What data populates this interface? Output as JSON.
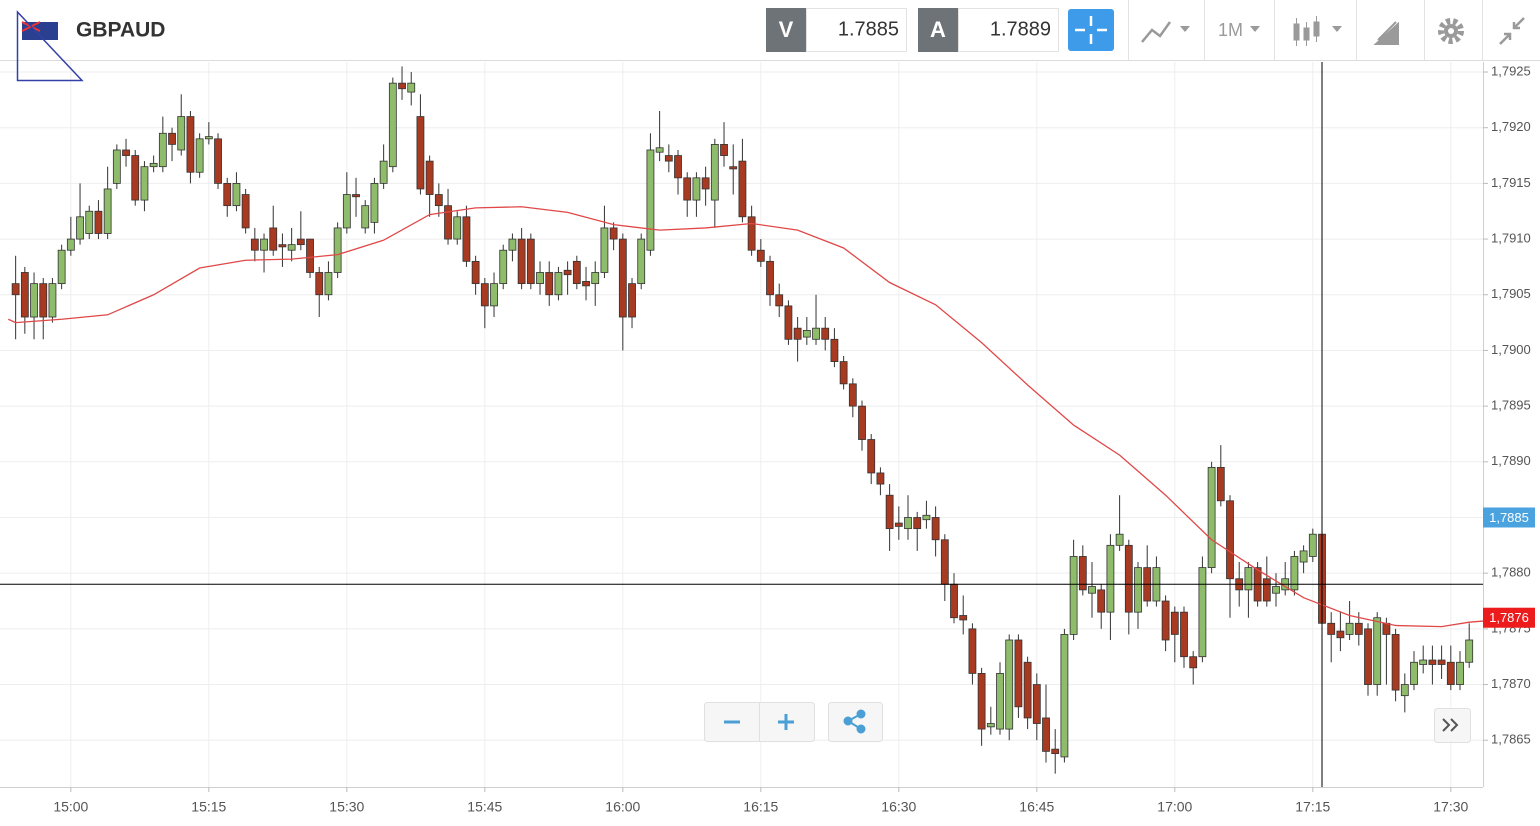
{
  "header": {
    "symbol": "GBPAUD",
    "bid_label": "V",
    "bid": 1.7885,
    "ask_label": "A",
    "ask": 1.7889,
    "timeframe": "1M"
  },
  "chart_data": {
    "type": "candlestick",
    "up_color": "#8fbc6a",
    "down_color": "#a83a22",
    "grid": true,
    "xlim": [
      892.3,
      1053.5
    ],
    "ylim": [
      1.78608,
      1.79259
    ],
    "xticks": [
      {
        "value": 900,
        "label": "15:00"
      },
      {
        "value": 915,
        "label": "15:15"
      },
      {
        "value": 930,
        "label": "15:30"
      },
      {
        "value": 945,
        "label": "15:45"
      },
      {
        "value": 960,
        "label": "16:00"
      },
      {
        "value": 975,
        "label": "16:15"
      },
      {
        "value": 990,
        "label": "16:30"
      },
      {
        "value": 1005,
        "label": "16:45"
      },
      {
        "value": 1020,
        "label": "17:00"
      },
      {
        "value": 1035,
        "label": "17:15"
      },
      {
        "value": 1050,
        "label": "17:30"
      }
    ],
    "yticks": [
      {
        "value": 1.7865,
        "label": "1,7865"
      },
      {
        "value": 1.787,
        "label": "1,7870"
      },
      {
        "value": 1.7875,
        "label": "1,7875"
      },
      {
        "value": 1.788,
        "label": "1,7880"
      },
      {
        "value": 1.7885,
        "label": "1,7885"
      },
      {
        "value": 1.789,
        "label": "1,7890"
      },
      {
        "value": 1.7895,
        "label": "1,7895"
      },
      {
        "value": 1.79,
        "label": "1,7900"
      },
      {
        "value": 1.7905,
        "label": "1,7905"
      },
      {
        "value": 1.791,
        "label": "1,7910"
      },
      {
        "value": 1.7915,
        "label": "1,7915"
      },
      {
        "value": 1.792,
        "label": "1,7920"
      },
      {
        "value": 1.7925,
        "label": "1,7925"
      }
    ],
    "price_tags": [
      {
        "value": 1.7885,
        "label": "1,7885",
        "color": "#4aa3df"
      },
      {
        "value": 1.7876,
        "label": "1,7876",
        "color": "#ec1c1c"
      }
    ],
    "crosshair": {
      "x": 1036,
      "y": 1.7879
    },
    "x": [
      894,
      895,
      896,
      897,
      898,
      899,
      900,
      901,
      902,
      903,
      904,
      905,
      906,
      907,
      908,
      909,
      910,
      911,
      912,
      913,
      914,
      915,
      916,
      917,
      918,
      919,
      920,
      921,
      922,
      923,
      924,
      925,
      926,
      927,
      928,
      929,
      930,
      931,
      932,
      933,
      934,
      935,
      936,
      937,
      938,
      939,
      940,
      941,
      942,
      943,
      944,
      945,
      946,
      947,
      948,
      949,
      950,
      951,
      952,
      953,
      954,
      955,
      956,
      957,
      958,
      959,
      960,
      961,
      962,
      963,
      964,
      965,
      966,
      967,
      968,
      969,
      970,
      971,
      972,
      973,
      974,
      975,
      976,
      977,
      978,
      979,
      980,
      981,
      982,
      983,
      984,
      985,
      986,
      987,
      988,
      989,
      990,
      991,
      992,
      993,
      994,
      995,
      996,
      997,
      998,
      999,
      1000,
      1001,
      1002,
      1003,
      1004,
      1005,
      1006,
      1007,
      1008,
      1009,
      1010,
      1011,
      1012,
      1013,
      1014,
      1015,
      1016,
      1017,
      1018,
      1019,
      1020,
      1021,
      1022,
      1023,
      1024,
      1025,
      1026,
      1027,
      1028,
      1029,
      1030,
      1031,
      1032,
      1033,
      1034,
      1035,
      1036,
      1037,
      1038,
      1039,
      1040,
      1041,
      1042,
      1043,
      1044,
      1045,
      1046,
      1047,
      1048,
      1049,
      1050,
      1051,
      1052
    ],
    "open": [
      1.7906,
      1.7907,
      1.7903,
      1.7906,
      1.7903,
      1.7906,
      1.7909,
      1.791,
      1.79105,
      1.79125,
      1.79105,
      1.7915,
      1.7918,
      1.79175,
      1.79135,
      1.79165,
      1.79165,
      1.79195,
      1.7918,
      1.7921,
      1.7916,
      1.7919,
      1.7919,
      1.7915,
      1.7913,
      1.7914,
      1.791,
      1.7909,
      1.7911,
      1.79095,
      1.7909,
      1.791,
      1.791,
      1.7907,
      1.7905,
      1.7907,
      1.7911,
      1.7914,
      1.7911,
      1.79115,
      1.7915,
      1.79165,
      1.7924,
      1.79232,
      1.7921,
      1.7917,
      1.7914,
      1.7913,
      1.791,
      1.7912,
      1.7908,
      1.7906,
      1.7904,
      1.7906,
      1.7909,
      1.791,
      1.791,
      1.7906,
      1.7907,
      1.7905,
      1.79072,
      1.7908,
      1.79062,
      1.7906,
      1.7907,
      1.7911,
      1.791,
      1.7906,
      1.7906,
      1.7909,
      1.79178,
      1.79175,
      1.79175,
      1.79155,
      1.79135,
      1.79155,
      1.79135,
      1.79185,
      1.79165,
      1.7917,
      1.7912,
      1.7909,
      1.7908,
      1.7905,
      1.7904,
      1.7902,
      1.79012,
      1.7901,
      1.7902,
      1.7901,
      1.7899,
      1.7897,
      1.7895,
      1.7892,
      1.7889,
      1.7887,
      1.78845,
      1.7884,
      1.7885,
      1.78848,
      1.7885,
      1.7883,
      1.7879,
      1.78762,
      1.7875,
      1.7871,
      1.78662,
      1.7866,
      1.7866,
      1.7874,
      1.7872,
      1.787,
      1.7867,
      1.78642,
      1.78635,
      1.78745,
      1.78815,
      1.78782,
      1.78785,
      1.78765,
      1.78825,
      1.78825,
      1.78765,
      1.78805,
      1.78775,
      1.78775,
      1.78765,
      1.78765,
      1.78725,
      1.78725,
      1.78805,
      1.78895,
      1.78865,
      1.78795,
      1.78785,
      1.78805,
      1.78795,
      1.78782,
      1.78785,
      1.78785,
      1.7881,
      1.78815,
      1.78835,
      1.78755,
      1.78748,
      1.78745,
      1.78755,
      1.7875,
      1.787,
      1.78755,
      1.78745,
      1.7869,
      1.787,
      1.78718,
      1.78722,
      1.78722,
      1.7872,
      1.787,
      1.7872
    ],
    "close": [
      1.7905,
      1.7903,
      1.7906,
      1.7903,
      1.7906,
      1.7909,
      1.791,
      1.7912,
      1.79125,
      1.79105,
      1.79145,
      1.7918,
      1.79175,
      1.79135,
      1.79165,
      1.79168,
      1.79195,
      1.79185,
      1.7921,
      1.7916,
      1.7919,
      1.79192,
      1.7915,
      1.7913,
      1.7915,
      1.7911,
      1.7909,
      1.791,
      1.7909,
      1.79093,
      1.79095,
      1.79095,
      1.7907,
      1.7905,
      1.7907,
      1.7911,
      1.7914,
      1.79138,
      1.7913,
      1.7915,
      1.7917,
      1.7924,
      1.79235,
      1.7924,
      1.79145,
      1.7914,
      1.7913,
      1.791,
      1.7912,
      1.7908,
      1.7906,
      1.7904,
      1.7906,
      1.7909,
      1.791,
      1.7906,
      1.7906,
      1.7907,
      1.7905,
      1.7907,
      1.79068,
      1.7906,
      1.79058,
      1.7907,
      1.7911,
      1.791,
      1.7903,
      1.7903,
      1.791,
      1.7918,
      1.79182,
      1.7917,
      1.79155,
      1.79135,
      1.79155,
      1.79145,
      1.79185,
      1.79175,
      1.79163,
      1.7912,
      1.7909,
      1.7908,
      1.7905,
      1.7904,
      1.7901,
      1.7901,
      1.79018,
      1.7902,
      1.7901,
      1.7899,
      1.7897,
      1.7895,
      1.7892,
      1.7889,
      1.7888,
      1.7884,
      1.78842,
      1.7885,
      1.7884,
      1.78852,
      1.7883,
      1.7879,
      1.7876,
      1.78758,
      1.7871,
      1.7866,
      1.78665,
      1.7871,
      1.7874,
      1.7868,
      1.7867,
      1.78665,
      1.7864,
      1.78638,
      1.78745,
      1.78815,
      1.78785,
      1.78788,
      1.78765,
      1.78825,
      1.78835,
      1.78765,
      1.78805,
      1.78775,
      1.78805,
      1.7874,
      1.78745,
      1.78725,
      1.78715,
      1.78805,
      1.78895,
      1.78865,
      1.78795,
      1.78785,
      1.78805,
      1.78775,
      1.78775,
      1.78788,
      1.78795,
      1.78815,
      1.7882,
      1.78835,
      1.78755,
      1.78745,
      1.78742,
      1.78755,
      1.78745,
      1.787,
      1.7876,
      1.78745,
      1.78695,
      1.787,
      1.7872,
      1.78722,
      1.78718,
      1.78718,
      1.787,
      1.7872,
      1.7874
    ],
    "high": [
      1.79085,
      1.79075,
      1.7907,
      1.79065,
      1.79065,
      1.79095,
      1.7912,
      1.7915,
      1.7913,
      1.79135,
      1.79165,
      1.79185,
      1.7919,
      1.7918,
      1.7917,
      1.79175,
      1.7921,
      1.792,
      1.7923,
      1.79215,
      1.79195,
      1.79205,
      1.79195,
      1.79155,
      1.7916,
      1.79145,
      1.7911,
      1.79105,
      1.7913,
      1.79105,
      1.7911,
      1.79125,
      1.791,
      1.79075,
      1.7908,
      1.79115,
      1.7916,
      1.79155,
      1.79135,
      1.79155,
      1.79185,
      1.79245,
      1.79255,
      1.7925,
      1.7923,
      1.79175,
      1.7915,
      1.79145,
      1.79125,
      1.7913,
      1.79085,
      1.79065,
      1.7907,
      1.79095,
      1.79105,
      1.7911,
      1.79105,
      1.7908,
      1.7908,
      1.79075,
      1.7908,
      1.79085,
      1.79075,
      1.7908,
      1.7913,
      1.79115,
      1.79105,
      1.79065,
      1.79105,
      1.79195,
      1.79215,
      1.79185,
      1.7918,
      1.7916,
      1.7916,
      1.79165,
      1.7919,
      1.79205,
      1.79185,
      1.7919,
      1.7913,
      1.791,
      1.79085,
      1.7906,
      1.79045,
      1.7903,
      1.7903,
      1.7905,
      1.7903,
      1.7902,
      1.78995,
      1.78975,
      1.78955,
      1.78925,
      1.78895,
      1.7888,
      1.7886,
      1.7887,
      1.78855,
      1.78865,
      1.7886,
      1.78835,
      1.788,
      1.7878,
      1.78755,
      1.78715,
      1.7868,
      1.7872,
      1.78745,
      1.78745,
      1.78725,
      1.7871,
      1.787,
      1.7866,
      1.7875,
      1.7883,
      1.78825,
      1.7881,
      1.7879,
      1.78835,
      1.7887,
      1.7883,
      1.7881,
      1.78825,
      1.78815,
      1.7878,
      1.7877,
      1.7877,
      1.7873,
      1.78815,
      1.789,
      1.78915,
      1.7887,
      1.7881,
      1.7881,
      1.7881,
      1.78815,
      1.788,
      1.7881,
      1.7882,
      1.78825,
      1.7884,
      1.78845,
      1.78765,
      1.78765,
      1.78775,
      1.78765,
      1.78755,
      1.78765,
      1.7876,
      1.7875,
      1.7871,
      1.7873,
      1.78735,
      1.78735,
      1.78735,
      1.78735,
      1.7873,
      1.78755
    ],
    "low": [
      1.7901,
      1.79015,
      1.7901,
      1.7901,
      1.79025,
      1.79055,
      1.79085,
      1.79095,
      1.791,
      1.791,
      1.791,
      1.79145,
      1.79165,
      1.7913,
      1.79125,
      1.7916,
      1.7916,
      1.7917,
      1.79175,
      1.7915,
      1.79155,
      1.79185,
      1.79145,
      1.7912,
      1.79125,
      1.79105,
      1.7908,
      1.7907,
      1.79085,
      1.79075,
      1.7908,
      1.7909,
      1.79065,
      1.7903,
      1.79045,
      1.79065,
      1.79105,
      1.7912,
      1.79105,
      1.79105,
      1.79145,
      1.7916,
      1.79225,
      1.7922,
      1.7914,
      1.7912,
      1.7912,
      1.79095,
      1.79095,
      1.79075,
      1.7905,
      1.7902,
      1.7903,
      1.79055,
      1.7908,
      1.79055,
      1.79055,
      1.7905,
      1.7904,
      1.79045,
      1.7905,
      1.79055,
      1.79045,
      1.7904,
      1.79065,
      1.7909,
      1.79,
      1.7902,
      1.79055,
      1.79085,
      1.7917,
      1.7916,
      1.7914,
      1.7912,
      1.7912,
      1.7913,
      1.7911,
      1.79165,
      1.7914,
      1.79115,
      1.79085,
      1.79075,
      1.7904,
      1.7903,
      1.79005,
      1.7899,
      1.79005,
      1.79005,
      1.79,
      1.78985,
      1.78965,
      1.7894,
      1.7891,
      1.7888,
      1.7887,
      1.7882,
      1.7883,
      1.7883,
      1.7882,
      1.7884,
      1.78815,
      1.78775,
      1.78755,
      1.78745,
      1.787,
      1.78645,
      1.78655,
      1.78655,
      1.7865,
      1.7867,
      1.7866,
      1.7865,
      1.7863,
      1.7862,
      1.7863,
      1.7874,
      1.7878,
      1.7876,
      1.7875,
      1.7874,
      1.7882,
      1.78745,
      1.7875,
      1.7877,
      1.7877,
      1.7873,
      1.7872,
      1.78715,
      1.787,
      1.7872,
      1.788,
      1.7886,
      1.7876,
      1.7877,
      1.7876,
      1.7877,
      1.7877,
      1.7877,
      1.7878,
      1.7878,
      1.788,
      1.7881,
      1.7874,
      1.7872,
      1.7873,
      1.7874,
      1.78735,
      1.7869,
      1.7869,
      1.787,
      1.78685,
      1.78675,
      1.78695,
      1.7871,
      1.787,
      1.78705,
      1.78695,
      1.78695,
      1.78715
    ],
    "ma": {
      "color": "#e04848",
      "x": [
        893.2,
        894,
        899,
        904,
        909,
        914,
        919,
        924,
        929,
        934,
        939,
        944,
        949,
        954,
        959,
        964,
        969,
        974,
        979,
        984,
        989,
        994,
        999,
        1004,
        1009,
        1014,
        1019,
        1024,
        1029,
        1034,
        1039,
        1044,
        1049,
        1052,
        1053.5
      ],
      "values": [
        1.79028,
        1.79025,
        1.79028,
        1.79032,
        1.7905,
        1.79074,
        1.79081,
        1.79082,
        1.79086,
        1.79099,
        1.79122,
        1.79128,
        1.79129,
        1.79124,
        1.79113,
        1.79108,
        1.7911,
        1.79114,
        1.79108,
        1.79092,
        1.79061,
        1.79041,
        1.79007,
        1.78969,
        1.78933,
        1.78906,
        1.7887,
        1.7883,
        1.78803,
        1.78778,
        1.78762,
        1.78753,
        1.78752,
        1.78756,
        1.78757
      ]
    }
  }
}
